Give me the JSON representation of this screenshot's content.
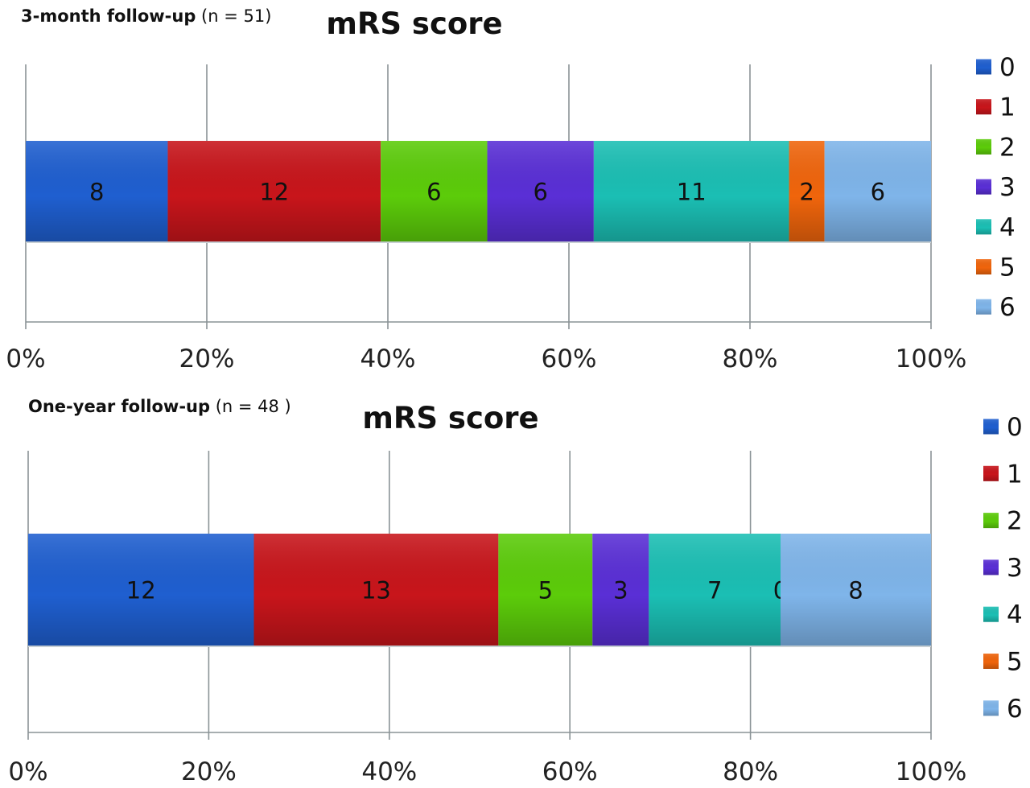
{
  "chart_data": [
    {
      "type": "bar",
      "orientation": "horizontal",
      "stacked": "percent",
      "subtitle_bold": "3-month follow-up",
      "subtitle_normal": " (n = 51)",
      "title": "mRS  score",
      "categories": [
        "3-month follow-up"
      ],
      "x_ticks": [
        "0%",
        "20%",
        "40%",
        "60%",
        "80%",
        "100%"
      ],
      "xlim": [
        0,
        100
      ],
      "grid": true,
      "legend_position": "right",
      "series": [
        {
          "name": "0",
          "color": "#1f5fd0",
          "value": 8
        },
        {
          "name": "1",
          "color": "#c8151b",
          "value": 12
        },
        {
          "name": "2",
          "color": "#5ccc0a",
          "value": 6
        },
        {
          "name": "3",
          "color": "#5a2fd6",
          "value": 6
        },
        {
          "name": "4",
          "color": "#1bbfb4",
          "value": 11
        },
        {
          "name": "5",
          "color": "#f0650c",
          "value": 2
        },
        {
          "name": "6",
          "color": "#7fb5ea",
          "value": 6
        }
      ]
    },
    {
      "type": "bar",
      "orientation": "horizontal",
      "stacked": "percent",
      "subtitle_bold": "One-year follow-up",
      "subtitle_normal": " (n = 48 )",
      "title": "mRS score",
      "categories": [
        "One-year follow-up"
      ],
      "x_ticks": [
        "0%",
        "20%",
        "40%",
        "60%",
        "80%",
        "100%"
      ],
      "xlim": [
        0,
        100
      ],
      "grid": true,
      "legend_position": "right",
      "series": [
        {
          "name": "0",
          "color": "#1f5fd0",
          "value": 12
        },
        {
          "name": "1",
          "color": "#c8151b",
          "value": 13
        },
        {
          "name": "2",
          "color": "#5ccc0a",
          "value": 5
        },
        {
          "name": "3",
          "color": "#5a2fd6",
          "value": 3
        },
        {
          "name": "4",
          "color": "#1bbfb4",
          "value": 7
        },
        {
          "name": "5",
          "color": "#f0650c",
          "value": 0
        },
        {
          "name": "6",
          "color": "#7fb5ea",
          "value": 8
        }
      ]
    }
  ]
}
